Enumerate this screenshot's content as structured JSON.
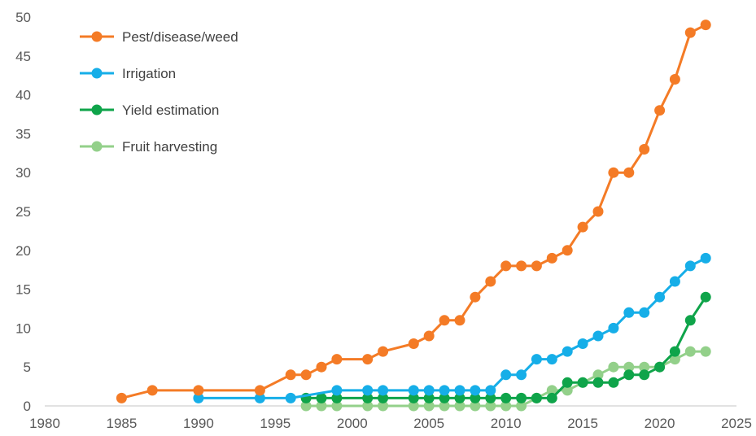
{
  "chart_data": {
    "type": "line",
    "title": "",
    "xlabel": "",
    "ylabel": "",
    "xlim": [
      1980,
      2025
    ],
    "ylim": [
      0,
      50
    ],
    "xticks": [
      1980,
      1985,
      1990,
      1995,
      2000,
      2005,
      2010,
      2015,
      2020,
      2025
    ],
    "yticks": [
      0,
      5,
      10,
      15,
      20,
      25,
      30,
      35,
      40,
      45,
      50
    ],
    "grid": false,
    "legend_position": "top-left",
    "series": [
      {
        "name": "Pest/disease/weed",
        "color": "#f47b26",
        "points": [
          [
            1985,
            1
          ],
          [
            1987,
            2
          ],
          [
            1990,
            2
          ],
          [
            1994,
            2
          ],
          [
            1996,
            4
          ],
          [
            1997,
            4
          ],
          [
            1998,
            5
          ],
          [
            1999,
            6
          ],
          [
            2001,
            6
          ],
          [
            2002,
            7
          ],
          [
            2004,
            8
          ],
          [
            2005,
            9
          ],
          [
            2006,
            11
          ],
          [
            2007,
            11
          ],
          [
            2008,
            14
          ],
          [
            2009,
            16
          ],
          [
            2010,
            18
          ],
          [
            2011,
            18
          ],
          [
            2012,
            18
          ],
          [
            2013,
            19
          ],
          [
            2014,
            20
          ],
          [
            2015,
            23
          ],
          [
            2016,
            25
          ],
          [
            2017,
            30
          ],
          [
            2018,
            30
          ],
          [
            2019,
            33
          ],
          [
            2020,
            38
          ],
          [
            2021,
            42
          ],
          [
            2022,
            48
          ],
          [
            2023,
            49
          ]
        ]
      },
      {
        "name": "Irrigation",
        "color": "#16aee8",
        "points": [
          [
            1990,
            1
          ],
          [
            1994,
            1
          ],
          [
            1996,
            1
          ],
          [
            1999,
            2
          ],
          [
            2001,
            2
          ],
          [
            2002,
            2
          ],
          [
            2004,
            2
          ],
          [
            2005,
            2
          ],
          [
            2006,
            2
          ],
          [
            2007,
            2
          ],
          [
            2008,
            2
          ],
          [
            2009,
            2
          ],
          [
            2010,
            4
          ],
          [
            2011,
            4
          ],
          [
            2012,
            6
          ],
          [
            2013,
            6
          ],
          [
            2014,
            7
          ],
          [
            2015,
            8
          ],
          [
            2016,
            9
          ],
          [
            2017,
            10
          ],
          [
            2018,
            12
          ],
          [
            2019,
            12
          ],
          [
            2020,
            14
          ],
          [
            2021,
            16
          ],
          [
            2022,
            18
          ],
          [
            2023,
            19
          ]
        ]
      },
      {
        "name": "Yield estimation",
        "color": "#0fa44a",
        "points": [
          [
            1997,
            1
          ],
          [
            1998,
            1
          ],
          [
            1999,
            1
          ],
          [
            2001,
            1
          ],
          [
            2002,
            1
          ],
          [
            2004,
            1
          ],
          [
            2005,
            1
          ],
          [
            2006,
            1
          ],
          [
            2007,
            1
          ],
          [
            2008,
            1
          ],
          [
            2009,
            1
          ],
          [
            2010,
            1
          ],
          [
            2011,
            1
          ],
          [
            2012,
            1
          ],
          [
            2013,
            1
          ],
          [
            2014,
            3
          ],
          [
            2015,
            3
          ],
          [
            2016,
            3
          ],
          [
            2017,
            3
          ],
          [
            2018,
            4
          ],
          [
            2019,
            4
          ],
          [
            2020,
            5
          ],
          [
            2021,
            7
          ],
          [
            2022,
            11
          ],
          [
            2023,
            14
          ]
        ]
      },
      {
        "name": "Fruit harvesting",
        "color": "#93d08a",
        "points": [
          [
            1997,
            0
          ],
          [
            1998,
            0
          ],
          [
            1999,
            0
          ],
          [
            2001,
            0
          ],
          [
            2002,
            0
          ],
          [
            2004,
            0
          ],
          [
            2005,
            0
          ],
          [
            2006,
            0
          ],
          [
            2007,
            0
          ],
          [
            2008,
            0
          ],
          [
            2009,
            0
          ],
          [
            2010,
            0
          ],
          [
            2011,
            0
          ],
          [
            2012,
            1
          ],
          [
            2013,
            2
          ],
          [
            2014,
            2
          ],
          [
            2015,
            3
          ],
          [
            2016,
            4
          ],
          [
            2017,
            5
          ],
          [
            2018,
            5
          ],
          [
            2019,
            5
          ],
          [
            2020,
            5
          ],
          [
            2021,
            6
          ],
          [
            2022,
            7
          ],
          [
            2023,
            7
          ]
        ]
      }
    ]
  }
}
